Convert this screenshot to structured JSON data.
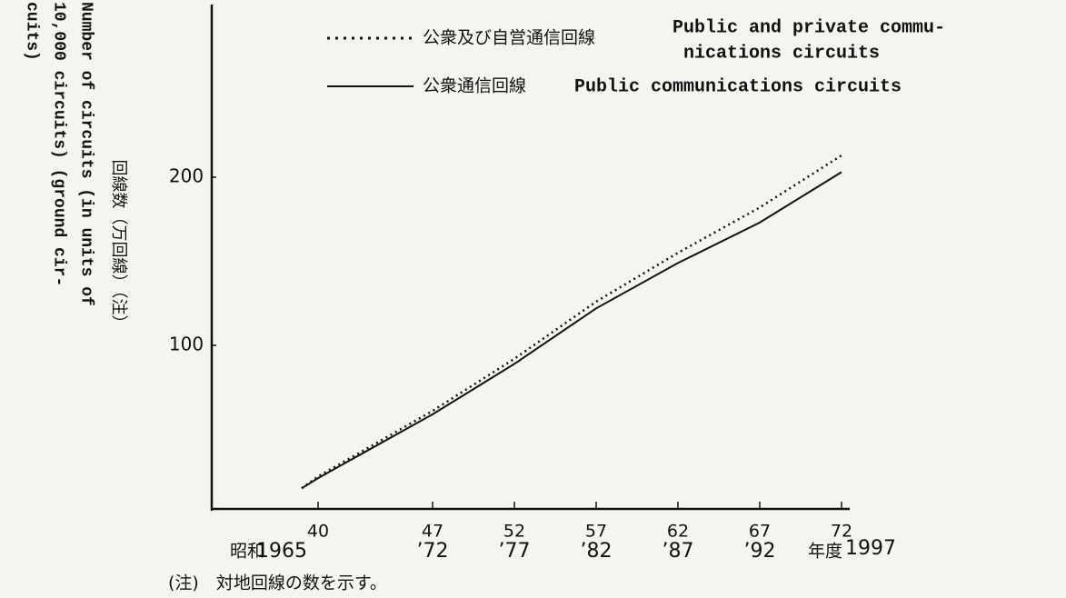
{
  "chart_data": {
    "type": "line",
    "y_label_jp": "回線数（万回線）（注）",
    "y_label_en_lines": [
      "Number of circuits (in units of",
      "10,000 circuits) (ground cir-",
      "cuits)"
    ],
    "x": [
      39,
      40,
      47,
      52,
      57,
      62,
      67,
      72
    ],
    "series": [
      {
        "name": "公衆及び自営通信回線",
        "name_en_lines": [
          "Public and private commu-",
          "nications circuits"
        ],
        "style": "dotted",
        "color": "#111111",
        "values": [
          15,
          22,
          61,
          92,
          126,
          155,
          182,
          213
        ]
      },
      {
        "name": "公衆通信回線",
        "name_en_lines": [
          "Public communications circuits"
        ],
        "style": "solid",
        "color": "#111111",
        "values": [
          15,
          21,
          59,
          89,
          122,
          149,
          173,
          203
        ]
      }
    ],
    "xlim": [
      33.5,
      72.5
    ],
    "xticks": [
      40,
      47,
      52,
      57,
      62,
      67,
      72
    ],
    "xtick_labels_ad": [
      "1965",
      "’72",
      "’77",
      "’82",
      "’87",
      "’92"
    ],
    "x_prefix": "昭和",
    "x_suffix": "年度",
    "x_suffix_ad": "1997",
    "ylim": [
      0,
      300
    ],
    "yticks": [
      100,
      200
    ],
    "note": "(注)　対地回線の数を示す。"
  }
}
